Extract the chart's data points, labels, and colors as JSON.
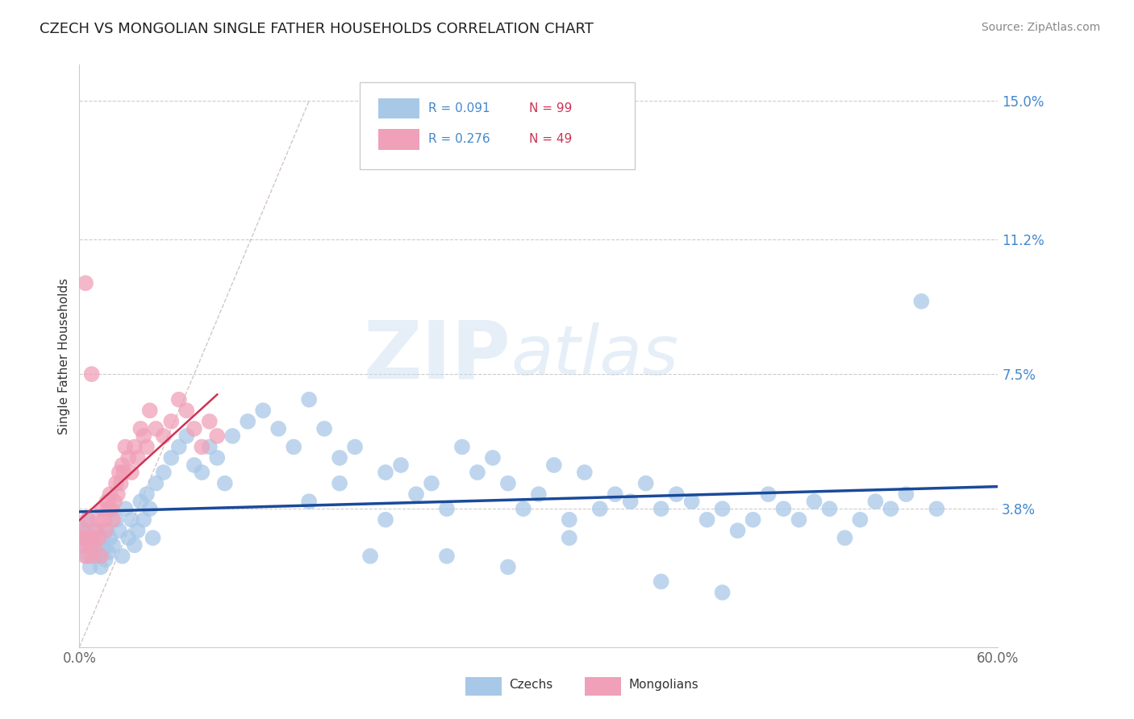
{
  "title": "CZECH VS MONGOLIAN SINGLE FATHER HOUSEHOLDS CORRELATION CHART",
  "source": "Source: ZipAtlas.com",
  "ylabel": "Single Father Households",
  "xlim": [
    0.0,
    0.6
  ],
  "ylim": [
    0.0,
    0.16
  ],
  "yticks": [
    0.038,
    0.075,
    0.112,
    0.15
  ],
  "ytick_labels": [
    "3.8%",
    "7.5%",
    "11.2%",
    "15.0%"
  ],
  "czech_color": "#a8c8e8",
  "mongolian_color": "#f0a0b8",
  "blue_line_color": "#1a4a9a",
  "pink_line_color": "#cc3355",
  "dashed_line_color": "#c8b8b8",
  "grid_color": "#cccccc",
  "right_label_color": "#4488cc",
  "czech_R": 0.091,
  "czech_N": 99,
  "mongolian_R": 0.276,
  "mongolian_N": 49,
  "czech_x": [
    0.001,
    0.002,
    0.003,
    0.004,
    0.005,
    0.006,
    0.007,
    0.008,
    0.009,
    0.01,
    0.011,
    0.012,
    0.013,
    0.014,
    0.015,
    0.016,
    0.017,
    0.018,
    0.019,
    0.02,
    0.022,
    0.024,
    0.026,
    0.028,
    0.03,
    0.032,
    0.034,
    0.036,
    0.038,
    0.04,
    0.042,
    0.044,
    0.046,
    0.048,
    0.05,
    0.055,
    0.06,
    0.065,
    0.07,
    0.075,
    0.08,
    0.085,
    0.09,
    0.095,
    0.1,
    0.11,
    0.12,
    0.13,
    0.14,
    0.15,
    0.16,
    0.17,
    0.18,
    0.19,
    0.2,
    0.21,
    0.22,
    0.23,
    0.24,
    0.25,
    0.26,
    0.27,
    0.28,
    0.29,
    0.3,
    0.31,
    0.32,
    0.33,
    0.34,
    0.35,
    0.36,
    0.37,
    0.38,
    0.39,
    0.4,
    0.41,
    0.42,
    0.43,
    0.44,
    0.45,
    0.46,
    0.47,
    0.48,
    0.49,
    0.5,
    0.51,
    0.52,
    0.53,
    0.54,
    0.55,
    0.56,
    0.2,
    0.15,
    0.17,
    0.24,
    0.32,
    0.28,
    0.38,
    0.42
  ],
  "czech_y": [
    0.033,
    0.03,
    0.028,
    0.032,
    0.025,
    0.035,
    0.022,
    0.03,
    0.028,
    0.025,
    0.032,
    0.028,
    0.025,
    0.022,
    0.03,
    0.027,
    0.024,
    0.032,
    0.026,
    0.03,
    0.028,
    0.035,
    0.032,
    0.025,
    0.038,
    0.03,
    0.035,
    0.028,
    0.032,
    0.04,
    0.035,
    0.042,
    0.038,
    0.03,
    0.045,
    0.048,
    0.052,
    0.055,
    0.058,
    0.05,
    0.048,
    0.055,
    0.052,
    0.045,
    0.058,
    0.062,
    0.065,
    0.06,
    0.055,
    0.068,
    0.06,
    0.052,
    0.055,
    0.025,
    0.048,
    0.05,
    0.042,
    0.045,
    0.038,
    0.055,
    0.048,
    0.052,
    0.045,
    0.038,
    0.042,
    0.05,
    0.035,
    0.048,
    0.038,
    0.042,
    0.04,
    0.045,
    0.038,
    0.042,
    0.04,
    0.035,
    0.038,
    0.032,
    0.035,
    0.042,
    0.038,
    0.035,
    0.04,
    0.038,
    0.03,
    0.035,
    0.04,
    0.038,
    0.042,
    0.095,
    0.038,
    0.035,
    0.04,
    0.045,
    0.025,
    0.03,
    0.022,
    0.018,
    0.015
  ],
  "mongolian_x": [
    0.001,
    0.002,
    0.003,
    0.004,
    0.005,
    0.006,
    0.007,
    0.008,
    0.009,
    0.01,
    0.011,
    0.012,
    0.013,
    0.014,
    0.015,
    0.016,
    0.017,
    0.018,
    0.019,
    0.02,
    0.021,
    0.022,
    0.023,
    0.024,
    0.025,
    0.026,
    0.027,
    0.028,
    0.029,
    0.03,
    0.032,
    0.034,
    0.036,
    0.038,
    0.04,
    0.042,
    0.044,
    0.046,
    0.05,
    0.055,
    0.06,
    0.065,
    0.07,
    0.075,
    0.08,
    0.085,
    0.09,
    0.004,
    0.008
  ],
  "mongolian_y": [
    0.03,
    0.028,
    0.032,
    0.025,
    0.035,
    0.03,
    0.028,
    0.025,
    0.03,
    0.028,
    0.032,
    0.035,
    0.03,
    0.025,
    0.038,
    0.035,
    0.032,
    0.04,
    0.038,
    0.042,
    0.038,
    0.035,
    0.04,
    0.045,
    0.042,
    0.048,
    0.045,
    0.05,
    0.048,
    0.055,
    0.052,
    0.048,
    0.055,
    0.052,
    0.06,
    0.058,
    0.055,
    0.065,
    0.06,
    0.058,
    0.062,
    0.068,
    0.065,
    0.06,
    0.055,
    0.062,
    0.058,
    0.1,
    0.075
  ]
}
